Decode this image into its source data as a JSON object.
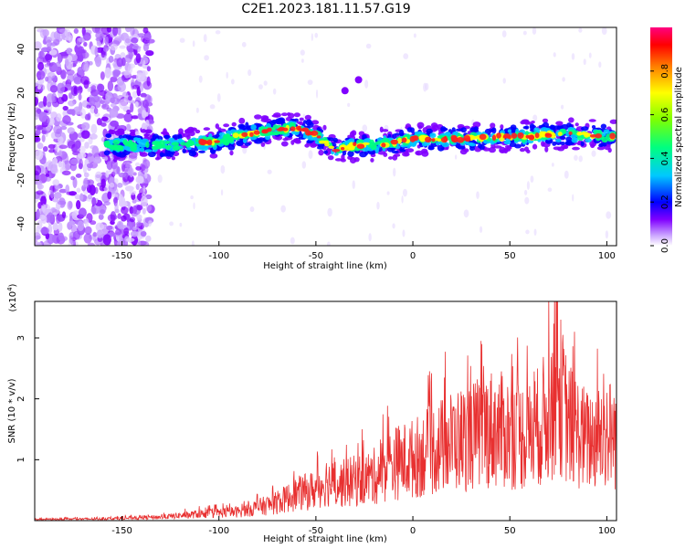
{
  "chart_data": [
    {
      "type": "heatmap",
      "title": "C2E1.2023.181.11.57.G19",
      "xlabel": "Height of straight line (km)",
      "ylabel": "Frequency (Hz)",
      "xlim": [
        -195,
        105
      ],
      "ylim": [
        -50,
        50
      ],
      "xticks": [
        -150,
        -100,
        -50,
        0,
        50,
        100
      ],
      "yticks": [
        -40,
        -20,
        0,
        20,
        40
      ],
      "colorbar": {
        "label": "Normalized spectral amplitude",
        "range": [
          0,
          1
        ],
        "ticks": [
          0.0,
          0.2,
          0.4,
          0.6,
          0.8
        ],
        "colors": [
          "#ffffff",
          "#c8a0ff",
          "#8000ff",
          "#0000ff",
          "#00c8ff",
          "#00ff80",
          "#80ff00",
          "#ffff00",
          "#ff8000",
          "#ff0000",
          "#ff0080"
        ]
      },
      "ridge": {
        "x": [
          -160,
          -140,
          -120,
          -100,
          -90,
          -80,
          -70,
          -60,
          -50,
          -45,
          -40,
          -35,
          -30,
          -20,
          -10,
          0,
          10,
          20,
          30,
          40,
          50,
          60,
          70,
          80,
          90,
          100,
          105
        ],
        "y": [
          -4,
          -4,
          -4,
          -2,
          0,
          2,
          3,
          4,
          1,
          -3,
          -6,
          -5,
          -4,
          -4,
          -3,
          -1,
          -1,
          -1,
          -1,
          0,
          0,
          0,
          1,
          1,
          1,
          0,
          0
        ]
      },
      "blobs": [
        {
          "x": -35,
          "y": 21
        },
        {
          "x": -28,
          "y": 26
        }
      ]
    },
    {
      "type": "line",
      "title": "",
      "xlabel": "Height of straight line (km)",
      "ylabel": "SNR (10 * v/v)",
      "yscale_label": "(x10^4)",
      "yscale_base": "x10",
      "yscale_exp": "4",
      "xlim": [
        -195,
        105
      ],
      "ylim": [
        0,
        3.6
      ],
      "xticks": [
        -150,
        -100,
        -50,
        0,
        50,
        100
      ],
      "yticks": [
        1,
        2,
        3
      ],
      "color": "#e83030",
      "envelope": {
        "x": [
          -195,
          -160,
          -130,
          -110,
          -90,
          -80,
          -70,
          -60,
          -50,
          -45,
          -40,
          -30,
          -20,
          -10,
          0,
          10,
          20,
          30,
          40,
          50,
          60,
          70,
          75,
          80,
          90,
          100,
          105
        ],
        "y": [
          0.03,
          0.04,
          0.08,
          0.15,
          0.2,
          0.3,
          0.4,
          0.6,
          0.7,
          0.9,
          0.8,
          0.9,
          1.0,
          1.3,
          1.4,
          1.6,
          1.8,
          1.9,
          2.1,
          2.0,
          1.9,
          2.4,
          3.0,
          2.2,
          1.8,
          2.0,
          1.9
        ]
      },
      "peak": {
        "x": 74,
        "y": 3.6
      }
    }
  ]
}
